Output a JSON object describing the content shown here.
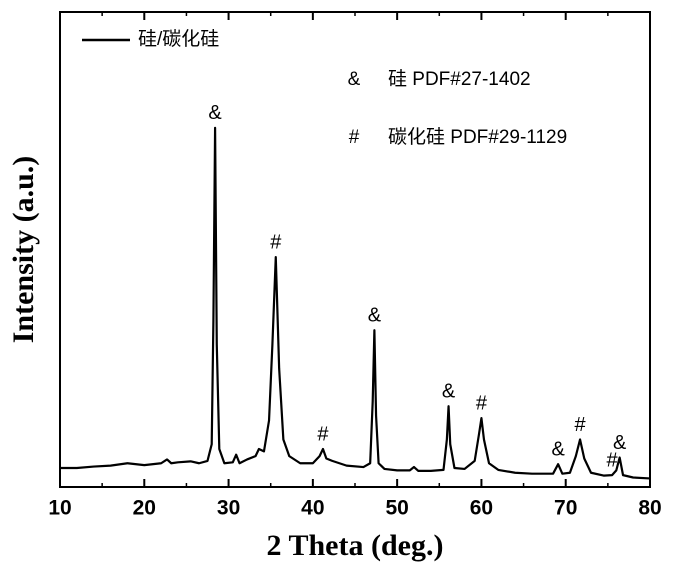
{
  "chart_data": {
    "type": "line",
    "xlabel": "2 Theta (deg.)",
    "ylabel": "Intensity (a.u.)",
    "x": [
      10,
      12,
      14,
      16,
      18,
      20,
      22,
      22.7,
      23.2,
      24,
      25.5,
      26.5,
      27.5,
      28.0,
      28.2,
      28.4,
      28.6,
      28.9,
      29.5,
      30.5,
      30.9,
      31.3,
      32.2,
      33.2,
      33.6,
      34.2,
      34.8,
      35.2,
      35.6,
      36.0,
      36.5,
      37.2,
      38.5,
      40,
      40.8,
      41.2,
      41.6,
      42.3,
      44,
      46,
      46.8,
      47.1,
      47.3,
      47.5,
      47.8,
      48.5,
      50,
      51.5,
      52,
      52.5,
      54,
      55.5,
      55.9,
      56.1,
      56.3,
      56.8,
      58,
      59.2,
      59.7,
      60.0,
      60.3,
      60.9,
      62,
      64,
      66,
      68.5,
      69.1,
      69.6,
      70.5,
      71.2,
      71.7,
      72.2,
      73,
      74.5,
      75.5,
      76.0,
      76.4,
      76.8,
      78,
      80
    ],
    "series": [
      {
        "name": "硅/碳化硅",
        "color": "#000000",
        "values": [
          4.0,
          4.0,
          4.3,
          4.5,
          5.0,
          4.6,
          5.0,
          5.8,
          5.0,
          5.2,
          5.4,
          5.0,
          5.5,
          9,
          35,
          75.6,
          30,
          8,
          5.0,
          5.2,
          6.8,
          5.0,
          5.8,
          6.5,
          8,
          7.5,
          14,
          30,
          48.4,
          25,
          10,
          6.5,
          5.0,
          5.0,
          6.5,
          8.0,
          6.0,
          5.5,
          4.5,
          4.2,
          5,
          18,
          33,
          15,
          5,
          3.8,
          3.5,
          3.5,
          4.2,
          3.4,
          3.4,
          3.6,
          10,
          17,
          9,
          4.0,
          3.8,
          5.5,
          11,
          14.5,
          10,
          5,
          3.6,
          3.0,
          2.8,
          2.8,
          4.8,
          2.8,
          3.0,
          6.5,
          10,
          6,
          3.0,
          2.4,
          2.5,
          3.5,
          6.2,
          2.5,
          2.0,
          1.8
        ]
      }
    ],
    "xlim": [
      10,
      80
    ],
    "xticks": [
      10,
      20,
      30,
      40,
      50,
      60,
      70,
      80
    ],
    "ylim": [
      0,
      100
    ],
    "yticks": [],
    "annotations": [
      {
        "text": "&",
        "x": 28.4
      },
      {
        "text": "#",
        "x": 35.6
      },
      {
        "text": "#",
        "x": 41.2
      },
      {
        "text": "&",
        "x": 47.3
      },
      {
        "text": "&",
        "x": 56.1
      },
      {
        "text": "#",
        "x": 60.0
      },
      {
        "text": "&",
        "x": 69.1
      },
      {
        "text": "#",
        "x": 71.7
      },
      {
        "text": "#",
        "x": 75.5
      },
      {
        "text": "&",
        "x": 76.4
      }
    ],
    "phase_legend": [
      {
        "symbol": "&",
        "label": "硅 PDF#27-1402"
      },
      {
        "symbol": "#",
        "label": "碳化硅 PDF#29-1129"
      }
    ]
  }
}
